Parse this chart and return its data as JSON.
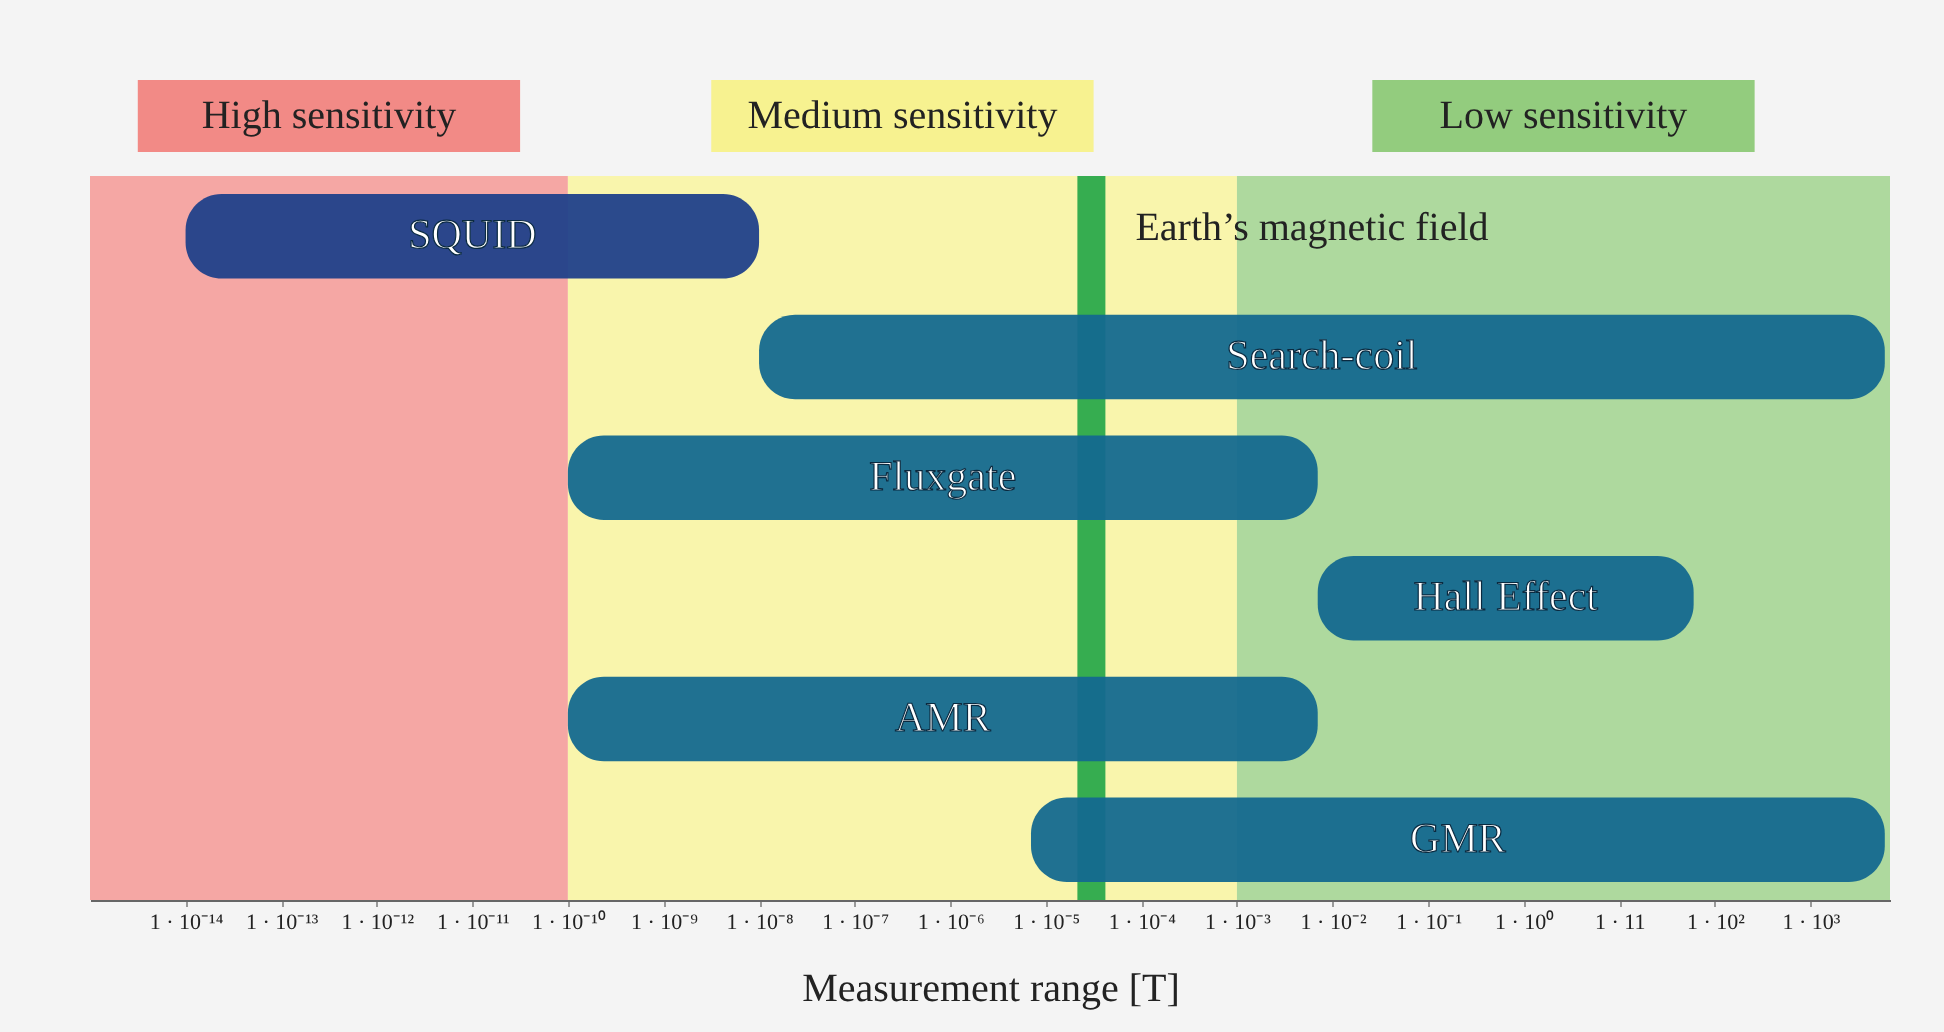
{
  "chart_data": {
    "type": "bar",
    "orientation": "horizontal",
    "log": "x",
    "grid": false,
    "tick_labels": "x",
    "xlabel": "Measurement range [T]",
    "categories": [
      "SQUID",
      "Search-coil",
      "Fluxgate",
      "Hall Effect",
      "AMR",
      "GMR"
    ],
    "base": [
      1e-14,
      1e-08,
      1e-10,
      0.007,
      1e-10,
      7e-06
    ],
    "values": [
      1e-08,
      6000,
      0.007,
      60,
      0.007,
      6000
    ],
    "colors": [
      "#20408a",
      "#14698f",
      "#14698f",
      "#14698f",
      "#14698f",
      "#14698f"
    ],
    "xlim": [
      1e-15,
      6800
    ],
    "xticks": [
      {
        "value": 1e-14,
        "label": "1 · 10⁻¹⁴"
      },
      {
        "value": 1e-13,
        "label": "1 · 10⁻¹³"
      },
      {
        "value": 1e-12,
        "label": "1 · 10⁻¹²"
      },
      {
        "value": 1e-11,
        "label": "1 · 10⁻¹¹"
      },
      {
        "value": 1e-10,
        "label": "1 · 10⁻¹⁰"
      },
      {
        "value": 1e-09,
        "label": "1 · 10⁻⁹"
      },
      {
        "value": 1e-08,
        "label": "1 · 10⁻⁸"
      },
      {
        "value": 1e-07,
        "label": "1 · 10⁻⁷"
      },
      {
        "value": 1e-06,
        "label": "1 · 10⁻⁶"
      },
      {
        "value": 1e-05,
        "label": "1 · 10⁻⁵"
      },
      {
        "value": 0.0001,
        "label": "1 · 10⁻⁴"
      },
      {
        "value": 0.001,
        "label": "1 · 10⁻³"
      },
      {
        "value": 0.01,
        "label": "1 · 10⁻²"
      },
      {
        "value": 0.1,
        "label": "1 · 10⁻¹"
      },
      {
        "value": 1,
        "label": "1 · 10⁰"
      },
      {
        "value": 10,
        "label": "1 · 11"
      },
      {
        "value": 100,
        "label": "1 · 10²"
      },
      {
        "value": 1000,
        "label": "1 · 10³"
      }
    ],
    "bands": [
      {
        "axis": "x",
        "from": 1e-15,
        "to": 1e-10,
        "label": "High sensitivity",
        "color": "#f28a86"
      },
      {
        "axis": "x",
        "from": 1e-10,
        "to": 0.001,
        "label": "Medium sensitivity",
        "color": "#f7f290"
      },
      {
        "axis": "x",
        "from": 0.001,
        "to": 6800,
        "label": "Low sensitivity",
        "color": "#93cc7e"
      }
    ],
    "ref_lines": [
      {
        "axis": "x",
        "value": 3e-05,
        "label": "Earth’s magnetic field",
        "color": "#14a040"
      }
    ]
  }
}
